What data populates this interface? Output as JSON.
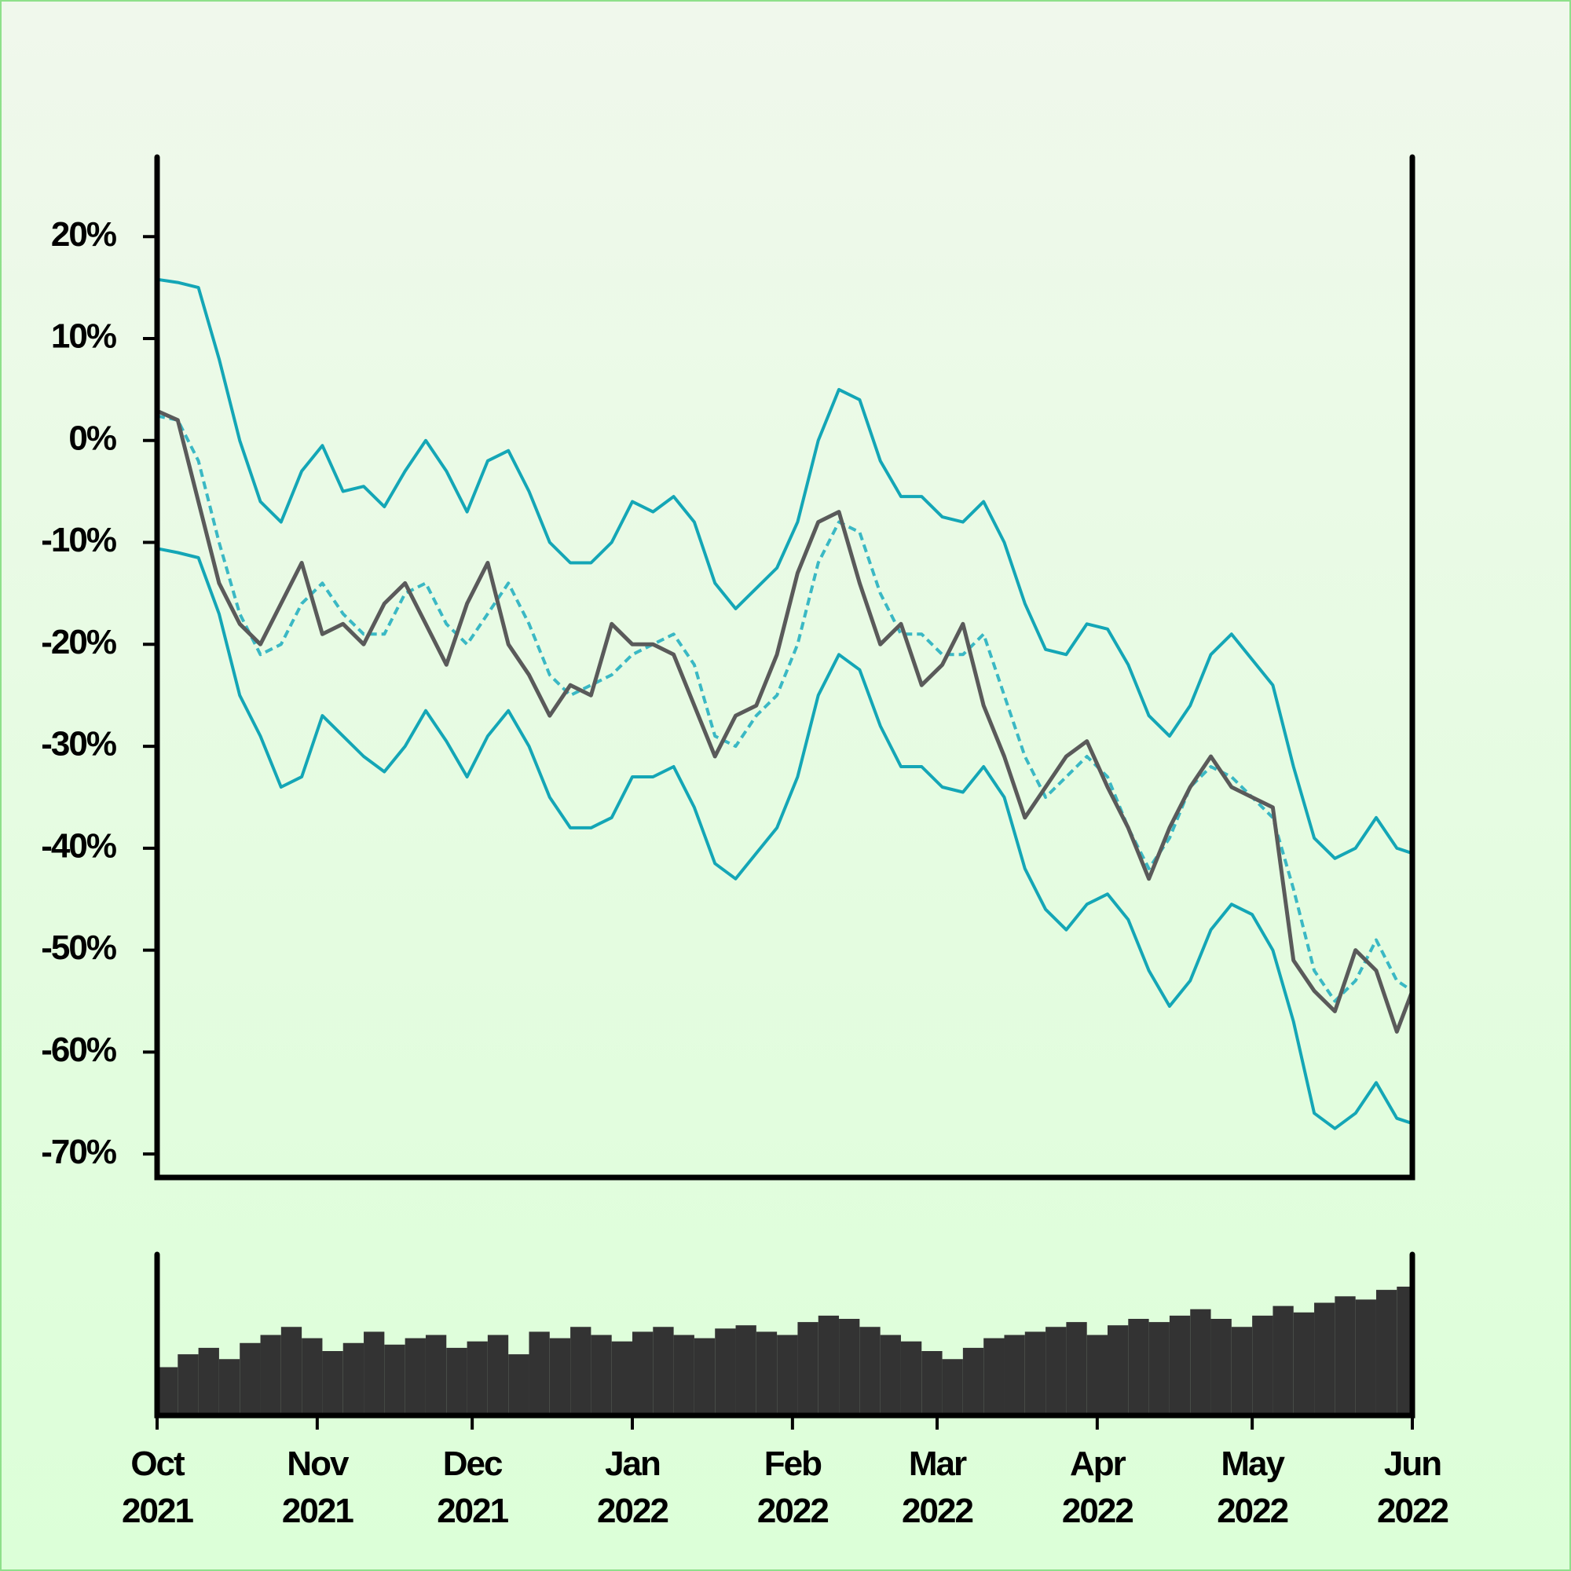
{
  "chart_data": [
    {
      "type": "line",
      "xlim": [
        0,
        243
      ],
      "ylim": [
        -72.3,
        27.8
      ],
      "yticks": [
        {
          "value": 20,
          "label": "20%"
        },
        {
          "value": 10,
          "label": "10%"
        },
        {
          "value": 0,
          "label": "0%"
        },
        {
          "value": -10,
          "label": "-10%"
        },
        {
          "value": -20,
          "label": "-20%"
        },
        {
          "value": -30,
          "label": "-30%"
        },
        {
          "value": -40,
          "label": "-40%"
        },
        {
          "value": -50,
          "label": "-50%"
        },
        {
          "value": -60,
          "label": "-60%"
        },
        {
          "value": -70,
          "label": "-70%"
        }
      ],
      "x": [
        0,
        4,
        8,
        12,
        16,
        20,
        24,
        28,
        32,
        36,
        40,
        44,
        48,
        52,
        56,
        60,
        64,
        68,
        72,
        76,
        80,
        84,
        88,
        92,
        96,
        100,
        104,
        108,
        112,
        116,
        120,
        124,
        128,
        132,
        136,
        140,
        144,
        148,
        152,
        156,
        160,
        164,
        168,
        172,
        176,
        180,
        184,
        188,
        192,
        196,
        200,
        204,
        208,
        212,
        216,
        220,
        224,
        228,
        232,
        236,
        240,
        243
      ],
      "series": [
        {
          "color": "#14a6b6",
          "style": "solid",
          "values": [
            15.8,
            15.5,
            15,
            8,
            0,
            -6,
            -8,
            -3,
            -0.5,
            -5,
            -4.5,
            -6.5,
            -3,
            0,
            -3,
            -7,
            -2,
            -1,
            -5,
            -10,
            -12,
            -12,
            -10,
            -6,
            -7,
            -5.5,
            -8,
            -14,
            -16.5,
            -14.5,
            -12.5,
            -8,
            0,
            5,
            4,
            -2,
            -5.5,
            -5.5,
            -7.5,
            -8,
            -6,
            -10,
            -16,
            -20.5,
            -21,
            -18,
            -18.5,
            -22,
            -27,
            -29,
            -26,
            -21,
            -19,
            -21.5,
            -24,
            -32,
            -39,
            -41,
            -40,
            -37,
            -40,
            -40.5
          ]
        },
        {
          "color": "#14a6b6",
          "style": "solid",
          "values": [
            -10.6,
            -11,
            -11.5,
            -17,
            -25,
            -29,
            -34,
            -33,
            -27,
            -29,
            -31,
            -32.5,
            -30,
            -26.5,
            -29.5,
            -33,
            -29,
            -26.5,
            -30,
            -35,
            -38,
            -38,
            -37,
            -33,
            -33,
            -32,
            -36,
            -41.5,
            -43,
            -40.5,
            -38,
            -33,
            -25,
            -21,
            -22.5,
            -28,
            -32,
            -32,
            -34,
            -34.5,
            -32,
            -35,
            -42,
            -46,
            -48,
            -45.5,
            -44.5,
            -47,
            -52,
            -55.5,
            -53,
            -48,
            -45.5,
            -46.5,
            -50,
            -57,
            -66,
            -67.5,
            -66,
            -63,
            -66.5,
            -67
          ]
        },
        {
          "color": "#3ab8c4",
          "style": "dashed",
          "values": [
            2.4,
            2,
            -2,
            -10,
            -17,
            -21,
            -20,
            -16,
            -14,
            -17,
            -19,
            -19,
            -15,
            -14,
            -18,
            -20,
            -17,
            -14,
            -18,
            -23,
            -25,
            -24,
            -23,
            -21,
            -20,
            -19,
            -22,
            -29,
            -30,
            -27,
            -25,
            -20,
            -12,
            -8,
            -9,
            -15,
            -19,
            -19,
            -21,
            -21,
            -19,
            -25,
            -31,
            -35,
            -33,
            -31,
            -33,
            -38,
            -42,
            -39,
            -34,
            -32,
            -33,
            -35,
            -37,
            -44,
            -52,
            -55,
            -53,
            -49,
            -53,
            -54
          ]
        },
        {
          "color": "#5a5a5a",
          "style": "solid",
          "values": [
            2.9,
            2,
            -6,
            -14,
            -18,
            -20,
            -16,
            -12,
            -19,
            -18,
            -20,
            -16,
            -14,
            -18,
            -22,
            -16,
            -12,
            -20,
            -23,
            -27,
            -24,
            -25,
            -18,
            -20,
            -20,
            -21,
            -26,
            -31,
            -27,
            -26,
            -21,
            -13,
            -8,
            -7,
            -14,
            -20,
            -18,
            -24,
            -22,
            -18,
            -26,
            -31,
            -37,
            -34,
            -31,
            -29.5,
            -34,
            -38,
            -43,
            -38,
            -34,
            -31,
            -34,
            -35,
            -36,
            -51,
            -54,
            -56,
            -50,
            -52,
            -58,
            -54
          ]
        }
      ]
    },
    {
      "type": "bar",
      "color": "#333333",
      "xlim": [
        0,
        243
      ],
      "ylim": [
        0,
        100
      ],
      "xticks": [
        {
          "value": 0,
          "label": "Oct 2021"
        },
        {
          "value": 31,
          "label": "Nov 2021"
        },
        {
          "value": 61,
          "label": "Dec 2021"
        },
        {
          "value": 92,
          "label": "Jan 2022"
        },
        {
          "value": 123,
          "label": "Feb 2022"
        },
        {
          "value": 151,
          "label": "Mar 2022"
        },
        {
          "value": 182,
          "label": "Apr 2022"
        },
        {
          "value": 212,
          "label": "May 2022"
        },
        {
          "value": 243,
          "label": "Jun 2022"
        }
      ],
      "x": [
        0,
        4,
        8,
        12,
        16,
        20,
        24,
        28,
        32,
        36,
        40,
        44,
        48,
        52,
        56,
        60,
        64,
        68,
        72,
        76,
        80,
        84,
        88,
        92,
        96,
        100,
        104,
        108,
        112,
        116,
        120,
        124,
        128,
        132,
        136,
        140,
        144,
        148,
        152,
        156,
        160,
        164,
        168,
        172,
        176,
        180,
        184,
        188,
        192,
        196,
        200,
        204,
        208,
        212,
        216,
        220,
        224,
        228,
        232,
        236,
        240,
        243
      ],
      "values": [
        30,
        38,
        42,
        35,
        45,
        50,
        55,
        48,
        40,
        45,
        52,
        44,
        48,
        50,
        42,
        46,
        50,
        38,
        52,
        48,
        55,
        50,
        46,
        52,
        55,
        50,
        48,
        54,
        56,
        52,
        50,
        58,
        62,
        60,
        55,
        50,
        46,
        40,
        35,
        42,
        48,
        50,
        52,
        55,
        58,
        50,
        56,
        60,
        58,
        62,
        66,
        60,
        55,
        62,
        68,
        64,
        70,
        74,
        72,
        78,
        80,
        76
      ]
    }
  ]
}
